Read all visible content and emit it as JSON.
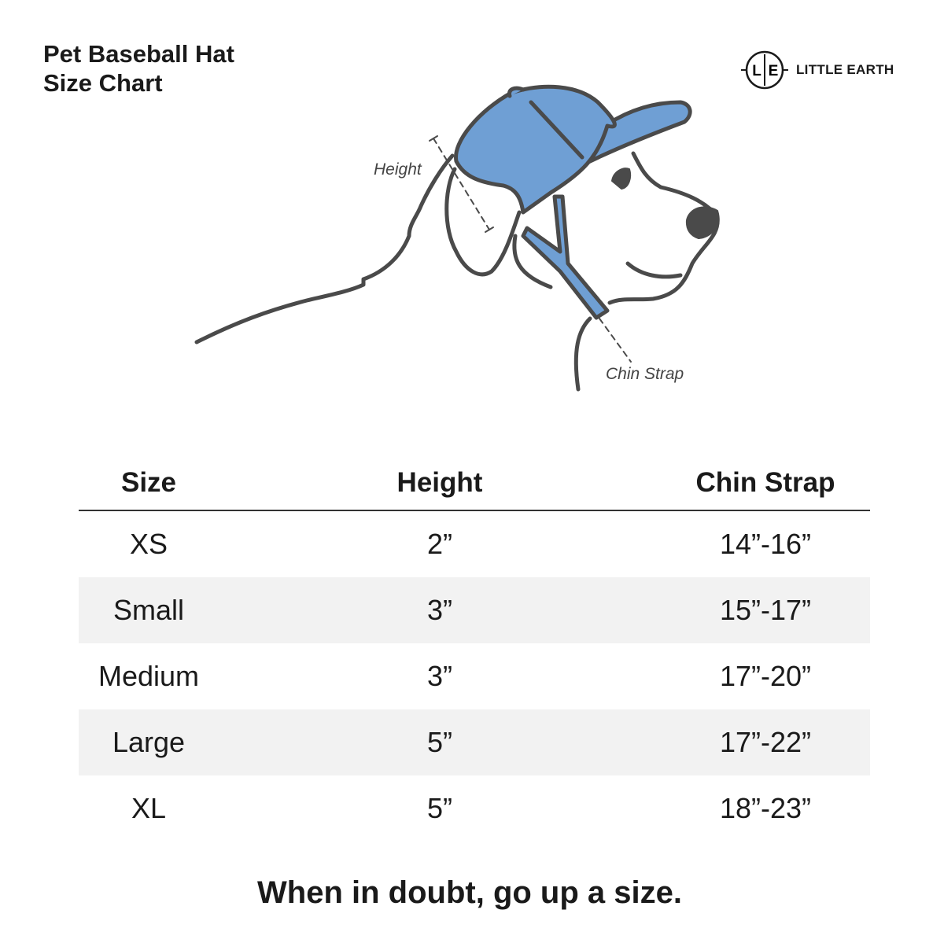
{
  "title_line1": "Pet Baseball Hat",
  "title_line2": "Size Chart",
  "logo": {
    "mark_left": "L",
    "mark_right": "E",
    "name": "LITTLE EARTH"
  },
  "illustration": {
    "height_label": "Height",
    "chin_strap_label": "Chin Strap",
    "hat_color": "#6f9fd4",
    "outline_color": "#4a4a4a"
  },
  "table": {
    "headers": [
      "Size",
      "Height",
      "Chin Strap"
    ],
    "rows": [
      [
        "XS",
        "2”",
        "14”-16”"
      ],
      [
        "Small",
        "3”",
        "15”-17”"
      ],
      [
        "Medium",
        "3”",
        "17”-20”"
      ],
      [
        "Large",
        "5”",
        "17”-22”"
      ],
      [
        "XL",
        "5”",
        "18”-23”"
      ]
    ]
  },
  "footer": "When in doubt, go up a size."
}
